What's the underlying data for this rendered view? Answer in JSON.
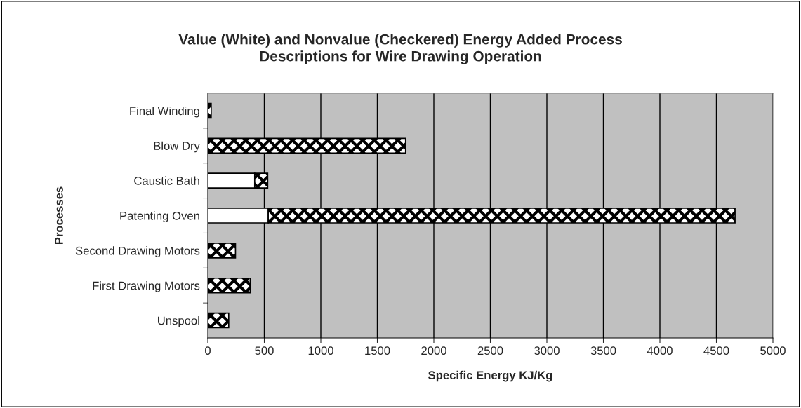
{
  "chart_data": {
    "type": "bar",
    "orientation": "horizontal",
    "stacked": true,
    "title": "Value (White) and Nonvalue (Checkered) Energy Added Process\nDescriptions for Wire Drawing Operation",
    "xlabel": "Specific Energy KJ/Kg",
    "ylabel": "Processes",
    "categories": [
      "Final Winding",
      "Blow Dry",
      "Caustic Bath",
      "Patenting Oven",
      "Second Drawing Motors",
      "First Drawing Motors",
      "Unspool"
    ],
    "series": [
      {
        "color": "#ffffff",
        "values": [
          null,
          null,
          415,
          535,
          null,
          null,
          null
        ]
      },
      {
        "color": "#000000",
        "values": [
          30,
          1750,
          115,
          4130,
          245,
          375,
          185
        ]
      }
    ],
    "xlim": [
      0,
      5000
    ],
    "xticks": [
      0,
      500,
      1000,
      1500,
      2000,
      2500,
      3000,
      3500,
      4000,
      4500,
      5000
    ],
    "grid": "x",
    "legend": false
  }
}
